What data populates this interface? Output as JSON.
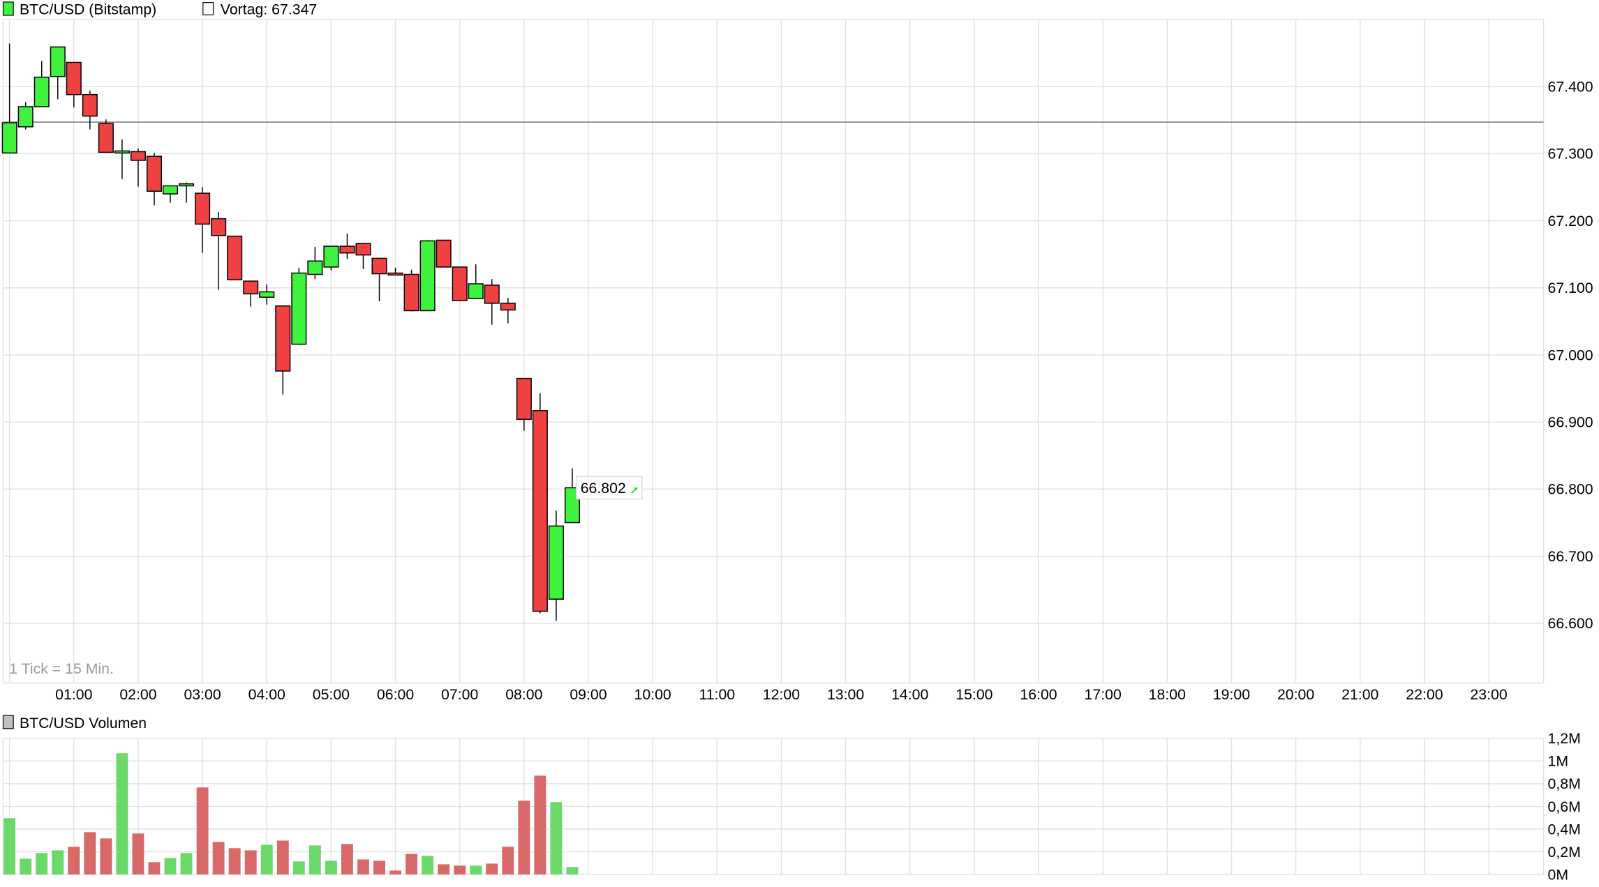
{
  "header": {
    "series_label": "BTC/USD (Bitstamp)",
    "prev_close_label": "Vortag: 67.347",
    "volume_label": "BTC/USD Volumen",
    "tick_note": "1 Tick = 15 Min."
  },
  "colors": {
    "up": "#3ef23e",
    "down": "#f04142",
    "vol_up": "#6ad96a",
    "vol_down": "#d96868",
    "grid": "#e2e2e2",
    "prev_close_line": "#8a8a8a",
    "up_arrow": "#22dd22"
  },
  "chart_data": [
    {
      "type": "candlestick",
      "ylim": [
        66.511,
        67.5
      ],
      "prev_close": 67.347,
      "last_price_label": "66.802",
      "y_ticks": [
        "67.400",
        "67.300",
        "67.200",
        "67.100",
        "67.000",
        "66.900",
        "66.800",
        "66.700",
        "66.600"
      ],
      "y_tick_values": [
        67.4,
        67.3,
        67.2,
        67.1,
        67.0,
        66.9,
        66.8,
        66.7,
        66.6
      ],
      "x_ticks": [
        "01:00",
        "02:00",
        "03:00",
        "04:00",
        "05:00",
        "06:00",
        "07:00",
        "08:00",
        "09:00",
        "10:00",
        "11:00",
        "12:00",
        "13:00",
        "14:00",
        "15:00",
        "16:00",
        "17:00",
        "18:00",
        "19:00",
        "20:00",
        "21:00",
        "22:00",
        "23:00"
      ],
      "grid": true,
      "candles_columns": [
        "time",
        "open",
        "high",
        "low",
        "close"
      ],
      "candles": [
        [
          "00:00",
          67.301,
          67.464,
          67.301,
          67.346
        ],
        [
          "00:15",
          67.34,
          67.377,
          67.336,
          67.37
        ],
        [
          "00:30",
          67.37,
          67.438,
          67.37,
          67.414
        ],
        [
          "00:45",
          67.415,
          67.459,
          67.381,
          67.459
        ],
        [
          "01:00",
          67.436,
          67.436,
          67.369,
          67.388
        ],
        [
          "01:15",
          67.388,
          67.394,
          67.336,
          67.356
        ],
        [
          "01:30",
          67.345,
          67.351,
          67.302,
          67.302
        ],
        [
          "01:45",
          67.301,
          67.321,
          67.262,
          67.304
        ],
        [
          "02:00",
          67.303,
          67.308,
          67.251,
          67.29
        ],
        [
          "02:15",
          67.296,
          67.301,
          67.223,
          67.244
        ],
        [
          "02:30",
          67.24,
          67.252,
          67.227,
          67.252
        ],
        [
          "02:45",
          67.252,
          67.257,
          67.227,
          67.255
        ],
        [
          "03:00",
          67.241,
          67.25,
          67.152,
          67.195
        ],
        [
          "03:15",
          67.203,
          67.213,
          67.097,
          67.178
        ],
        [
          "03:30",
          67.177,
          67.177,
          67.112,
          67.112
        ],
        [
          "03:45",
          67.11,
          67.111,
          67.072,
          67.091
        ],
        [
          "04:00",
          67.086,
          67.105,
          67.075,
          67.094
        ],
        [
          "04:15",
          67.073,
          67.074,
          66.941,
          66.976
        ],
        [
          "04:30",
          67.016,
          67.13,
          67.016,
          67.122
        ],
        [
          "04:45",
          67.12,
          67.161,
          67.113,
          67.14
        ],
        [
          "05:00",
          67.131,
          67.162,
          67.126,
          67.162
        ],
        [
          "05:15",
          67.162,
          67.181,
          67.143,
          67.152
        ],
        [
          "05:30",
          67.166,
          67.167,
          67.128,
          67.149
        ],
        [
          "05:45",
          67.144,
          67.144,
          67.08,
          67.121
        ],
        [
          "06:00",
          67.122,
          67.13,
          67.119,
          67.119
        ],
        [
          "06:15",
          67.12,
          67.127,
          67.065,
          67.066
        ],
        [
          "06:30",
          67.066,
          67.171,
          67.066,
          67.17
        ],
        [
          "06:45",
          67.171,
          67.171,
          67.131,
          67.131
        ],
        [
          "07:00",
          67.131,
          67.131,
          67.081,
          67.081
        ],
        [
          "07:15",
          67.084,
          67.135,
          67.084,
          67.106
        ],
        [
          "07:30",
          67.104,
          67.113,
          67.045,
          67.077
        ],
        [
          "07:45",
          67.077,
          67.085,
          67.047,
          67.067
        ],
        [
          "08:00",
          66.965,
          66.965,
          66.887,
          66.904
        ],
        [
          "08:15",
          66.917,
          66.943,
          66.615,
          66.618
        ],
        [
          "08:30",
          66.636,
          66.768,
          66.604,
          66.745
        ],
        [
          "08:45",
          66.75,
          66.831,
          66.75,
          66.802
        ]
      ]
    },
    {
      "type": "bar",
      "ylim": [
        0,
        1.2
      ],
      "y_ticks": [
        "1,2M",
        "1M",
        "0,8M",
        "0,6M",
        "0,4M",
        "0,2M",
        "0M"
      ],
      "y_tick_values": [
        1.2,
        1.0,
        0.8,
        0.6,
        0.4,
        0.2,
        0.0
      ],
      "unit": "M",
      "grid": true,
      "values": [
        0.496,
        0.139,
        0.189,
        0.213,
        0.244,
        0.373,
        0.318,
        1.068,
        0.361,
        0.109,
        0.146,
        0.189,
        0.767,
        0.287,
        0.232,
        0.213,
        0.262,
        0.299,
        0.115,
        0.256,
        0.121,
        0.269,
        0.133,
        0.121,
        0.035,
        0.182,
        0.164,
        0.09,
        0.078,
        0.078,
        0.096,
        0.244,
        0.65,
        0.871,
        0.638,
        0.066
      ]
    }
  ]
}
